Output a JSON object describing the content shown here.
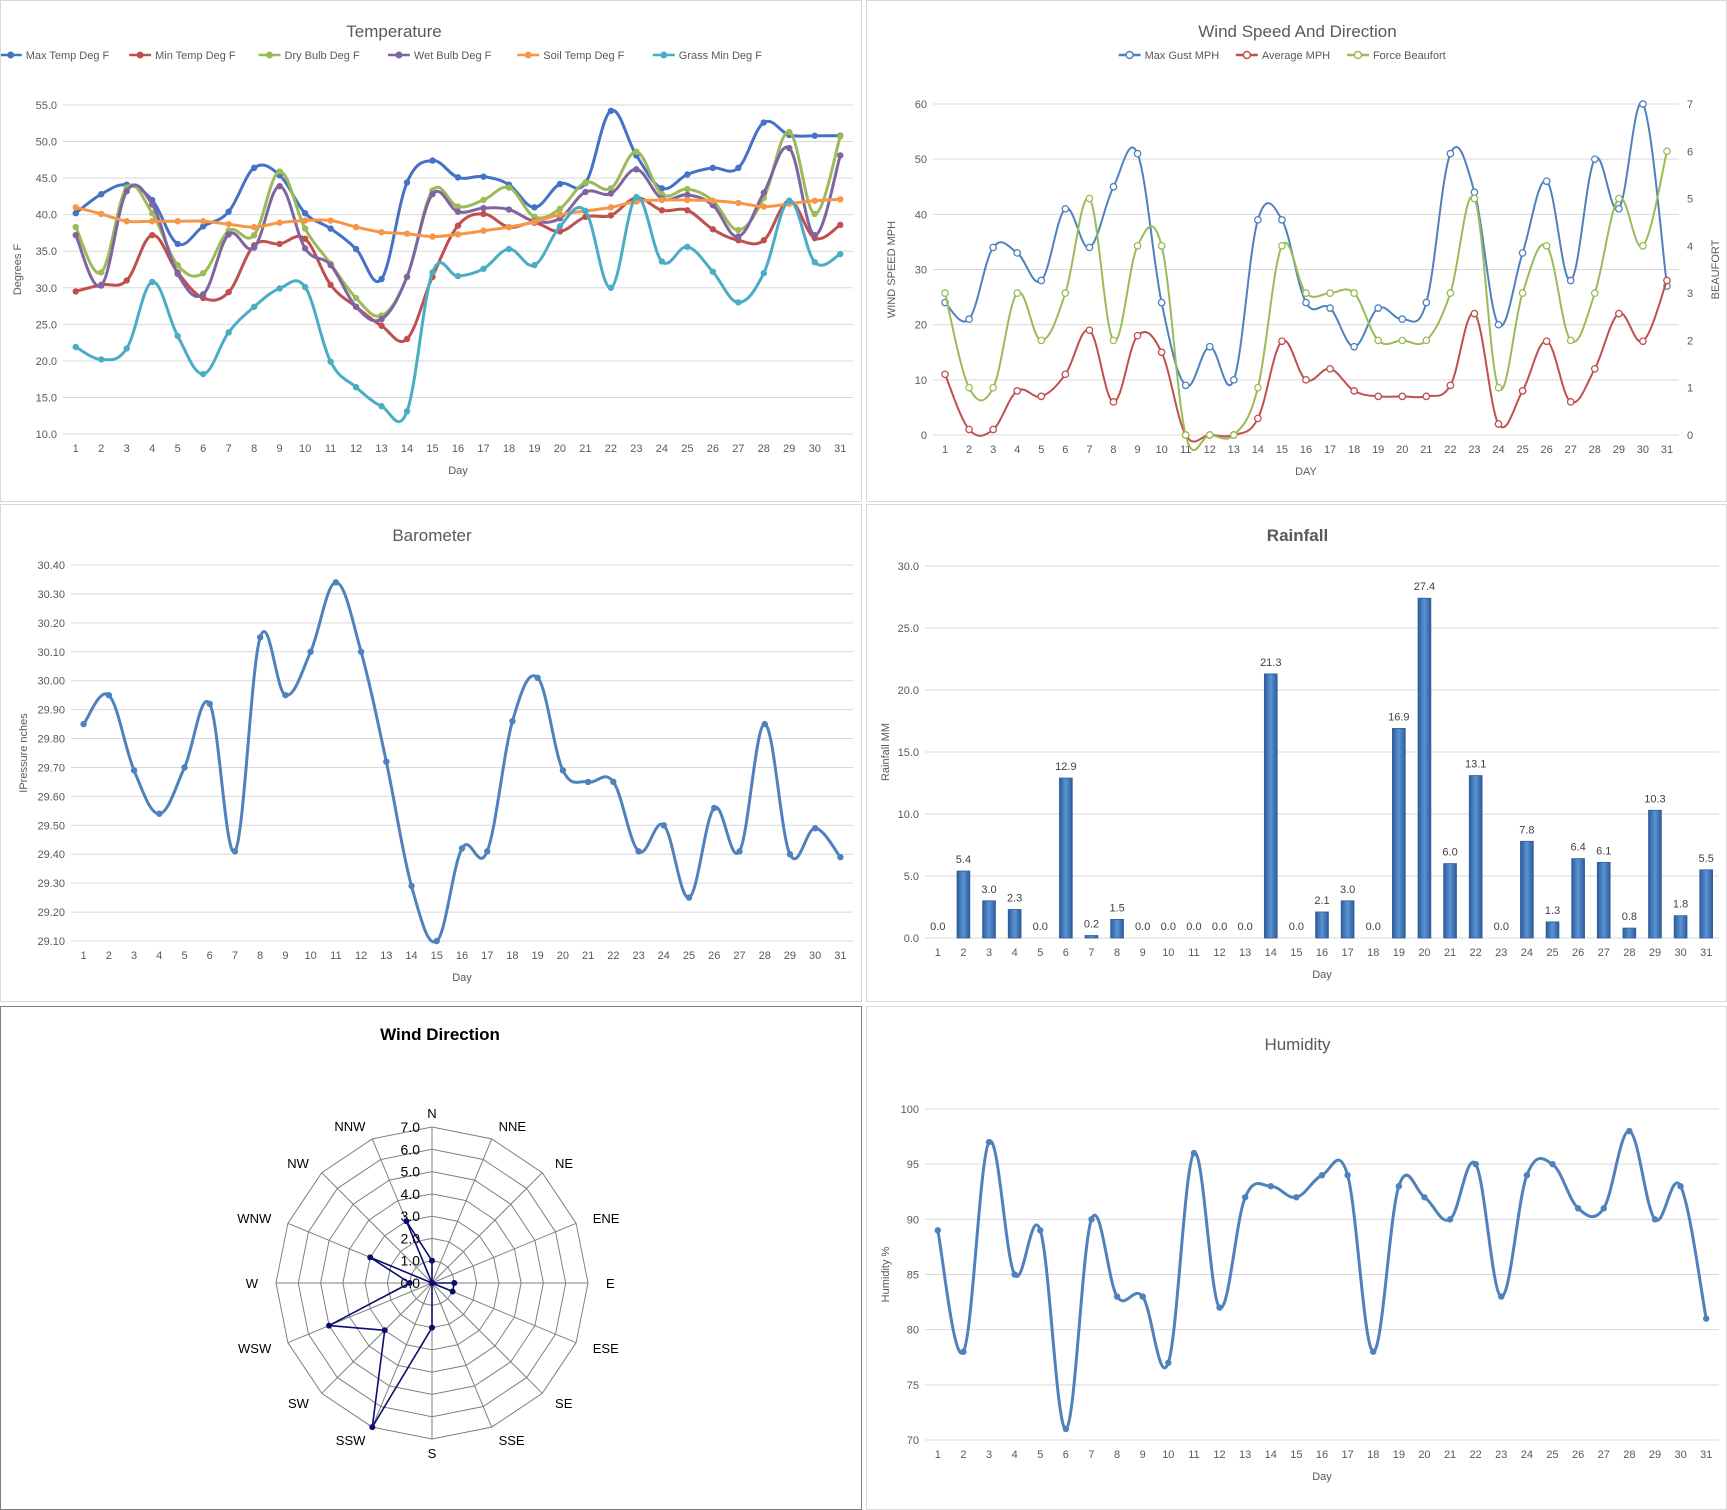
{
  "chart_data": [
    {
      "id": "temperature",
      "type": "line",
      "title": "Temperature",
      "xlabel": "Day",
      "ylabel": "Degrees F",
      "ylim": [
        10,
        55
      ],
      "yticks": [
        "10.0",
        "15.0",
        "20.0",
        "25.0",
        "30.0",
        "35.0",
        "40.0",
        "45.0",
        "50.0",
        "55.0"
      ],
      "grid": true,
      "legend": "top",
      "x": [
        1,
        2,
        3,
        4,
        5,
        6,
        7,
        8,
        9,
        10,
        11,
        12,
        13,
        14,
        15,
        16,
        17,
        18,
        19,
        20,
        21,
        22,
        23,
        24,
        25,
        26,
        27,
        28,
        29,
        30,
        31
      ],
      "series": [
        {
          "name": "Max Temp Deg F",
          "color": "#4472c4",
          "values": [
            40.2,
            42.8,
            44.1,
            42.0,
            36.0,
            38.4,
            40.4,
            46.4,
            45.4,
            40.2,
            38.1,
            35.3,
            31.2,
            44.4,
            47.4,
            45.1,
            45.2,
            44.1,
            41.0,
            44.2,
            44.3,
            54.2,
            48.1,
            43.6,
            45.5,
            46.4,
            46.4,
            52.6,
            50.9,
            50.8,
            50.8
          ]
        },
        {
          "name": "Min Temp Deg F",
          "color": "#c0504d",
          "values": [
            29.5,
            30.4,
            31.0,
            37.2,
            32.1,
            28.6,
            29.4,
            35.8,
            36.0,
            36.7,
            30.4,
            27.4,
            24.8,
            23.0,
            31.5,
            38.5,
            40.1,
            38.3,
            38.9,
            37.7,
            39.7,
            39.9,
            42.3,
            40.6,
            40.6,
            38.0,
            36.5,
            36.5,
            41.9,
            36.8,
            38.6
          ]
        },
        {
          "name": "Dry Bulb Deg F",
          "color": "#9bbb59",
          "values": [
            38.3,
            32.1,
            43.7,
            40.2,
            33.1,
            32.0,
            37.8,
            37.2,
            45.9,
            38.1,
            33.3,
            28.6,
            26.2,
            31.5,
            43.3,
            41.1,
            42.0,
            43.7,
            39.7,
            40.8,
            44.4,
            43.6,
            48.6,
            42.8,
            43.5,
            41.9,
            37.9,
            42.3,
            51.3,
            40.1,
            50.7
          ]
        },
        {
          "name": "Wet Bulb Deg F",
          "color": "#8064a2",
          "values": [
            37.2,
            30.3,
            43.2,
            41.4,
            31.9,
            29.1,
            37.3,
            35.5,
            43.9,
            35.4,
            33.1,
            27.4,
            25.7,
            31.5,
            42.8,
            40.4,
            40.9,
            40.7,
            39.1,
            39.5,
            43.1,
            42.9,
            46.2,
            42.2,
            42.7,
            41.3,
            37.0,
            43.0,
            49.1,
            37.2,
            48.1
          ]
        },
        {
          "name": "Soil Temp Deg F",
          "color": "#f79646",
          "values": [
            41.0,
            40.1,
            39.1,
            39.1,
            39.1,
            39.1,
            38.7,
            38.3,
            38.9,
            39.2,
            39.2,
            38.3,
            37.6,
            37.4,
            37.0,
            37.3,
            37.8,
            38.3,
            39.0,
            40.0,
            40.5,
            41.0,
            41.8,
            42.0,
            42.0,
            41.9,
            41.6,
            41.1,
            41.5,
            41.9,
            42.1
          ]
        },
        {
          "name": "Grass Min Deg F",
          "color": "#4bacc6",
          "values": [
            21.9,
            20.2,
            21.7,
            30.8,
            23.4,
            18.2,
            23.9,
            27.4,
            29.9,
            30.1,
            19.9,
            16.4,
            13.8,
            13.1,
            32.1,
            31.6,
            32.6,
            35.3,
            33.1,
            38.4,
            40.5,
            30.0,
            42.4,
            33.6,
            35.6,
            32.2,
            28.0,
            32.0,
            41.9,
            33.5,
            34.6
          ]
        }
      ]
    },
    {
      "id": "wind",
      "type": "line",
      "title": "Wind Speed  And Direction",
      "xlabel": "DAY",
      "ylabel": "WIND SPEED MPH",
      "y2label": "BEAUFORT",
      "ylim": [
        0,
        60
      ],
      "y2lim": [
        0,
        7
      ],
      "yticks": [
        "0",
        "10",
        "20",
        "30",
        "40",
        "50",
        "60"
      ],
      "y2ticks": [
        "0",
        "1",
        "2",
        "3",
        "4",
        "5",
        "6",
        "7"
      ],
      "grid": true,
      "legend": "top",
      "x": [
        1,
        2,
        3,
        4,
        5,
        6,
        7,
        8,
        9,
        10,
        11,
        12,
        13,
        14,
        15,
        16,
        17,
        18,
        19,
        20,
        21,
        22,
        23,
        24,
        25,
        26,
        27,
        28,
        29,
        30,
        31
      ],
      "series": [
        {
          "name": "Max Gust MPH",
          "color": "#4f81bd",
          "axis": "left",
          "values": [
            24,
            21,
            34,
            33,
            28,
            41,
            34,
            45,
            51,
            24,
            9,
            16,
            10,
            39,
            39,
            24,
            23,
            16,
            23,
            21,
            24,
            51,
            44,
            20,
            33,
            46,
            28,
            50,
            41,
            60,
            27
          ]
        },
        {
          "name": "Average MPH",
          "color": "#c0504d",
          "axis": "left",
          "values": [
            11,
            1,
            1,
            8,
            7,
            11,
            19,
            6,
            18,
            15,
            0,
            0,
            0,
            3,
            17,
            10,
            12,
            8,
            7,
            7,
            7,
            9,
            22,
            2,
            8,
            17,
            6,
            12,
            22,
            17,
            28
          ]
        },
        {
          "name": "Force Beaufort",
          "color": "#9bbb59",
          "axis": "right",
          "values": [
            3,
            1,
            1,
            3,
            2,
            3,
            5,
            2,
            4,
            4,
            0,
            0,
            0,
            1,
            4,
            3,
            3,
            3,
            2,
            2,
            2,
            3,
            5,
            1,
            3,
            4,
            2,
            3,
            5,
            4,
            6
          ]
        }
      ]
    },
    {
      "id": "barometer",
      "type": "line",
      "title": "Barometer",
      "xlabel": "Day",
      "ylabel": "IPressure nches",
      "ylim": [
        29.1,
        30.4
      ],
      "yticks": [
        "29.10",
        "29.20",
        "29.30",
        "29.40",
        "29.50",
        "29.60",
        "29.70",
        "29.80",
        "29.90",
        "30.00",
        "30.10",
        "30.20",
        "30.30",
        "30.40"
      ],
      "grid": true,
      "x": [
        1,
        2,
        3,
        4,
        5,
        6,
        7,
        8,
        9,
        10,
        11,
        12,
        13,
        14,
        15,
        16,
        17,
        18,
        19,
        20,
        21,
        22,
        23,
        24,
        25,
        26,
        27,
        28,
        29,
        30,
        31
      ],
      "series": [
        {
          "name": "",
          "color": "#4f81bd",
          "values": [
            29.85,
            29.95,
            29.69,
            29.54,
            29.7,
            29.92,
            29.41,
            30.15,
            29.95,
            30.1,
            30.34,
            30.1,
            29.72,
            29.29,
            29.1,
            29.42,
            29.41,
            29.86,
            30.01,
            29.69,
            29.65,
            29.65,
            29.41,
            29.5,
            29.25,
            29.56,
            29.41,
            29.85,
            29.4,
            29.49,
            29.39
          ]
        }
      ]
    },
    {
      "id": "rainfall",
      "type": "bar",
      "title": "Rainfall",
      "xlabel": "Day",
      "ylabel": "Rainfall MM",
      "ylim": [
        0,
        30
      ],
      "yticks": [
        "0.0",
        "5.0",
        "10.0",
        "15.0",
        "20.0",
        "25.0",
        "30.0"
      ],
      "grid": true,
      "categories": [
        "1",
        "2",
        "3",
        "4",
        "5",
        "6",
        "7",
        "8",
        "9",
        "10",
        "11",
        "12",
        "13",
        "14",
        "15",
        "16",
        "17",
        "18",
        "19",
        "20",
        "21",
        "22",
        "23",
        "24",
        "25",
        "26",
        "27",
        "28",
        "29",
        "30",
        "31"
      ],
      "values": [
        0.0,
        5.4,
        3.0,
        2.3,
        0.0,
        12.9,
        0.2,
        1.5,
        0.0,
        0.0,
        0.0,
        0.0,
        0.0,
        21.3,
        0.0,
        2.1,
        3.0,
        0.0,
        16.9,
        27.4,
        6.0,
        13.1,
        0.0,
        7.8,
        1.3,
        6.4,
        6.1,
        0.8,
        10.3,
        1.8,
        5.5
      ],
      "labels": [
        "0.0",
        "5.4",
        "3.0",
        "2.3",
        "0.0",
        "12.9",
        "0.2",
        "1.5",
        "0.0",
        "0.0",
        "0.0",
        "0.0",
        "0.0",
        "21.3",
        "0.0",
        "2.1",
        "3.0",
        "0.0",
        "16.9",
        "27.4",
        "6.0",
        "13.1",
        "0.0",
        "7.8",
        "1.3",
        "6.4",
        "6.1",
        "0.8",
        "10.3",
        "1.8",
        "5.5"
      ],
      "color": "#4a7ebb"
    },
    {
      "id": "wind-direction",
      "type": "radar",
      "title": "Wind Direction",
      "directions": [
        "N",
        "NNE",
        "NE",
        "ENE",
        "E",
        "ESE",
        "SE",
        "SSE",
        "S",
        "SSW",
        "SW",
        "WSW",
        "W",
        "WNW",
        "NW",
        "NNW"
      ],
      "rlim": [
        0,
        7
      ],
      "rticks": [
        "0.0",
        "1.0",
        "2.0",
        "3.0",
        "4.0",
        "5.0",
        "6.0",
        "7.0"
      ],
      "values": [
        1,
        0,
        0,
        0,
        1,
        1,
        0,
        0,
        2,
        7,
        3,
        5,
        1,
        3,
        0,
        3
      ],
      "color": "#0c0c6e"
    },
    {
      "id": "humidity",
      "type": "line",
      "title": "Humidity",
      "xlabel": "Day",
      "ylabel": "Humidity %",
      "ylim": [
        70,
        100
      ],
      "yticks": [
        "70",
        "75",
        "80",
        "85",
        "90",
        "95",
        "100"
      ],
      "grid": true,
      "x": [
        1,
        2,
        3,
        4,
        5,
        6,
        7,
        8,
        9,
        10,
        11,
        12,
        13,
        14,
        15,
        16,
        17,
        18,
        19,
        20,
        21,
        22,
        23,
        24,
        25,
        26,
        27,
        28,
        29,
        30,
        31
      ],
      "series": [
        {
          "name": "",
          "color": "#4f81bd",
          "values": [
            89,
            78,
            97,
            85,
            89,
            71,
            90,
            83,
            83,
            77,
            96,
            82,
            92,
            93,
            92,
            94,
            94,
            78,
            93,
            92,
            90,
            95,
            83,
            94,
            95,
            91,
            91,
            98,
            90,
            93,
            81
          ]
        }
      ]
    }
  ]
}
